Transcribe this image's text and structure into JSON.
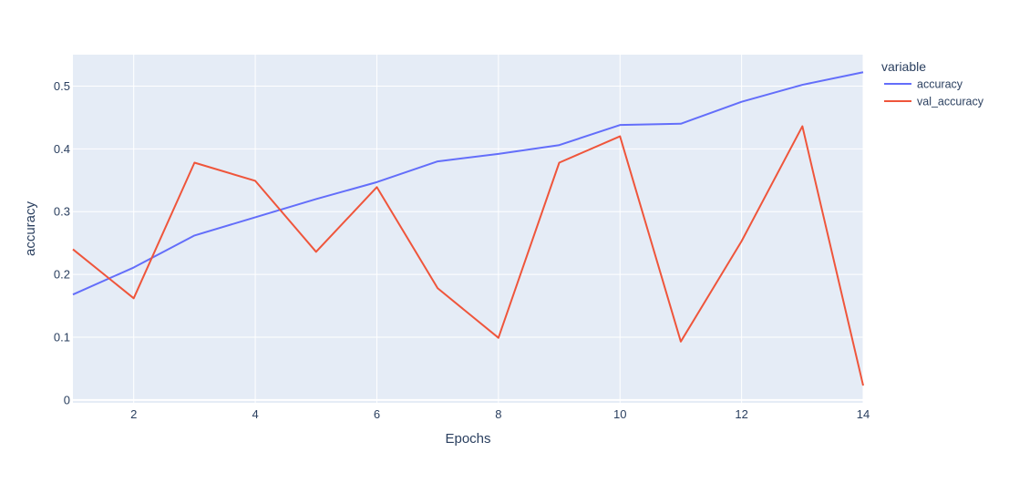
{
  "chart_data": {
    "type": "line",
    "title": "",
    "xlabel": "Epochs",
    "ylabel": "accuracy",
    "xlim": [
      1,
      14
    ],
    "ylim": [
      -0.0045,
      0.55
    ],
    "x_ticks": [
      2,
      4,
      6,
      8,
      10,
      12,
      14
    ],
    "y_ticks": [
      0,
      0.1,
      0.2,
      0.3,
      0.4,
      0.5
    ],
    "x_tick_labels": [
      "2",
      "4",
      "6",
      "8",
      "10",
      "12",
      "14"
    ],
    "y_tick_labels": [
      "0",
      "0.1",
      "0.2",
      "0.3",
      "0.4",
      "0.5"
    ],
    "grid": true,
    "plot_background": "#e5ecf6",
    "grid_color": "#ffffff",
    "legend": {
      "title": "variable",
      "placement": "top-right, outside plot"
    },
    "x": [
      1,
      2,
      3,
      4,
      5,
      6,
      7,
      8,
      9,
      10,
      11,
      12,
      13,
      14
    ],
    "series": [
      {
        "name": "accuracy",
        "color": "#636efa",
        "values": [
          0.168,
          0.211,
          0.262,
          0.291,
          0.32,
          0.347,
          0.38,
          0.392,
          0.406,
          0.438,
          0.44,
          0.475,
          0.502,
          0.522
        ]
      },
      {
        "name": "val_accuracy",
        "color": "#ef553b",
        "values": [
          0.24,
          0.162,
          0.378,
          0.349,
          0.236,
          0.339,
          0.178,
          0.099,
          0.378,
          0.42,
          0.093,
          0.253,
          0.436,
          0.023
        ]
      }
    ]
  }
}
